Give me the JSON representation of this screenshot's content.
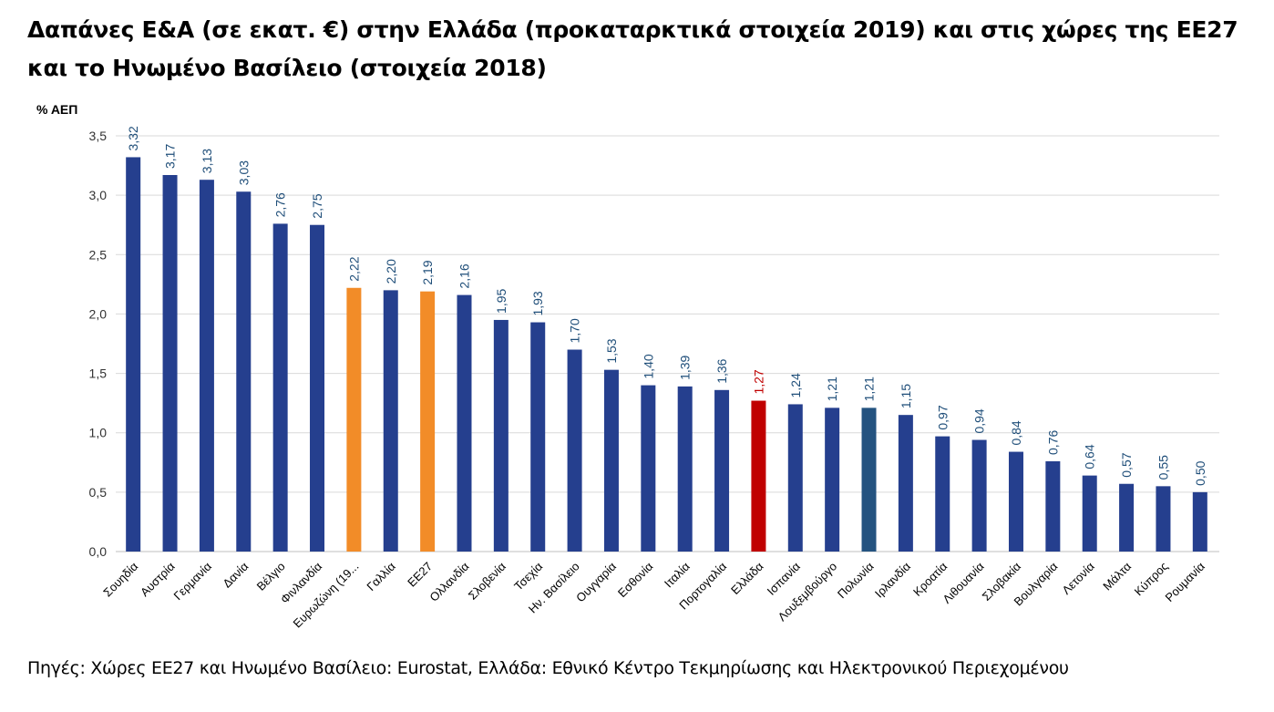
{
  "chart_data": {
    "type": "bar",
    "title": "Δαπάνες Ε&Α (σε εκατ. €) στην Ελλάδα (προκαταρκτικά στοιχεία 2019) και στις χώρες της ΕΕ27 και το Ηνωμένο Βασίλειο (στοιχεία 2018)",
    "title_lines": [
      "Δαπάνες Ε&Α (σε εκατ. €) στην Ελλάδα (προκαταρκτικά στοιχεία 2019) και στις χώρες της ΕΕ27",
      "και το Ηνωμένο Βασίλειο (στοιχεία 2018)"
    ],
    "ylabel": "% ΑΕΠ",
    "xlabel": "",
    "ylim": [
      0,
      3.5
    ],
    "yticks": [
      "0,0",
      "0,5",
      "1,0",
      "1,5",
      "2,0",
      "2,5",
      "3,0",
      "3,5"
    ],
    "grid": true,
    "categories": [
      "Σουηδία",
      "Αυστρία",
      "Γερμανία",
      "Δανία",
      "Βέλγιο",
      "Φινλανδία",
      "Ευρωζώνη (19...",
      "Γαλλία",
      "ΕΕ27",
      "Ολλανδία",
      "Σλοβενία",
      "Τσεχία",
      "Ην. Βασίλειο",
      "Ουγγαρία",
      "Εσθονία",
      "Ιταλία",
      "Πορτογαλία",
      "Ελλάδα",
      "Ισπανία",
      "Λουξεμβούργο",
      "Πολωνία",
      "Ιρλανδία",
      "Κροατία",
      "Λιθουανία",
      "Σλοβακία",
      "Βουλγαρία",
      "Λετονία",
      "Μάλτα",
      "Κύπρος",
      "Ρουμανία"
    ],
    "values": [
      3.32,
      3.17,
      3.13,
      3.03,
      2.76,
      2.75,
      2.22,
      2.2,
      2.19,
      2.16,
      1.95,
      1.93,
      1.7,
      1.53,
      1.4,
      1.39,
      1.36,
      1.27,
      1.24,
      1.21,
      1.21,
      1.15,
      0.97,
      0.94,
      0.84,
      0.76,
      0.64,
      0.57,
      0.55,
      0.5
    ],
    "data_labels": [
      "3,32",
      "3,17",
      "3,13",
      "3,03",
      "2,76",
      "2,75",
      "2,22",
      "2,20",
      "2,19",
      "2,16",
      "1,95",
      "1,93",
      "1,70",
      "1,53",
      "1,40",
      "1,39",
      "1,36",
      "1,27",
      "1,24",
      "1,21",
      "1,21",
      "1,15",
      "0,97",
      "0,94",
      "0,84",
      "0,76",
      "0,64",
      "0,57",
      "0,55",
      "0,50"
    ],
    "colors": {
      "default": "#253F8E",
      "eurozone": "#F28C28",
      "eu27": "#F28C28",
      "greece": "#C00000",
      "poland": "#245380",
      "label": "#1F4E79",
      "label_greece": "#C00000",
      "grid": "#D9D9D9"
    },
    "highlight": {
      "Ευρωζώνη (19...": "eurozone",
      "ΕΕ27": "eu27",
      "Ελλάδα": "greece",
      "Πολωνία": "poland"
    }
  },
  "source": "Πηγές: Χώρες ΕΕ27 και Ηνωμένο Βασίλειο: Eurostat, Ελλάδα: Εθνικό Κέντρο Τεκμηρίωσης και Ηλεκτρονικού Περιεχομένου"
}
